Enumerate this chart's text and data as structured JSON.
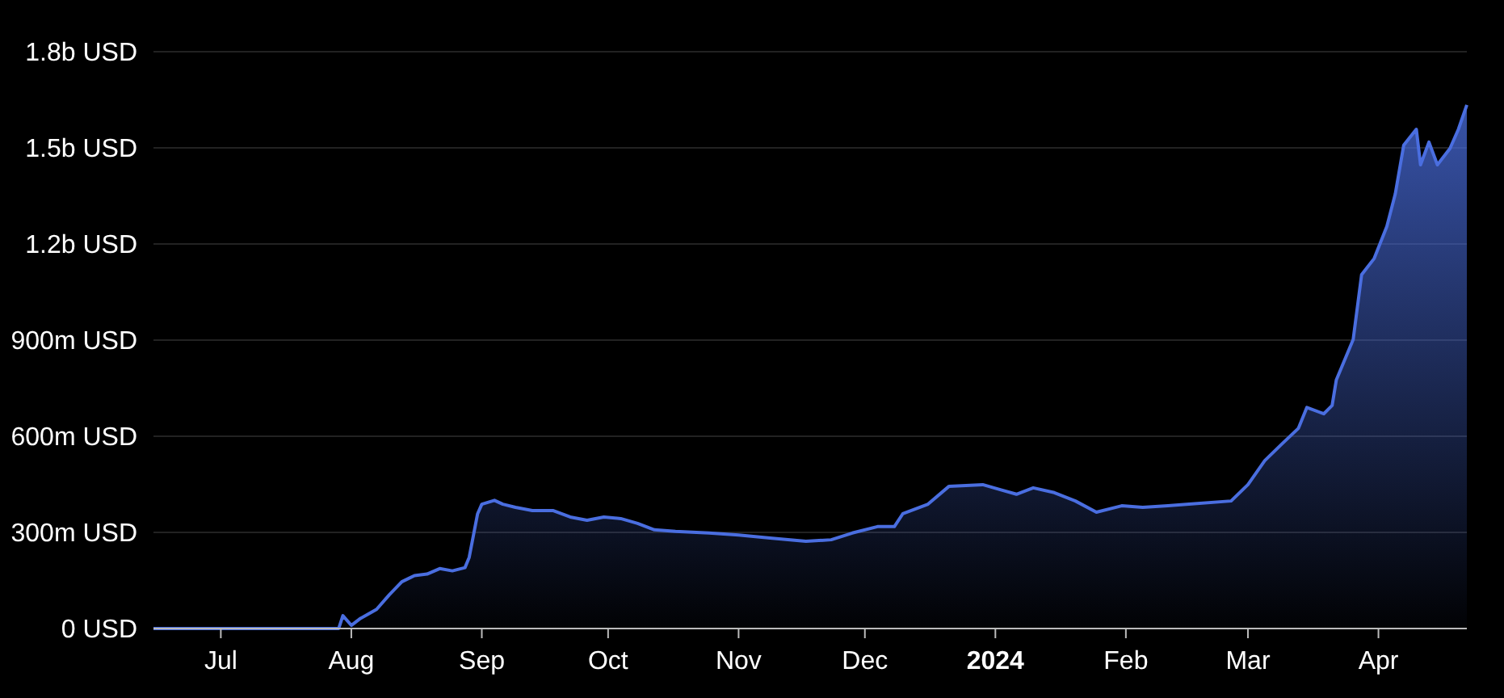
{
  "chart_data": {
    "type": "area",
    "x": [
      "2023-06-15",
      "2023-07-29",
      "2023-07-30",
      "2023-08-01",
      "2023-08-03",
      "2023-08-07",
      "2023-08-10",
      "2023-08-13",
      "2023-08-16",
      "2023-08-19",
      "2023-08-22",
      "2023-08-25",
      "2023-08-28",
      "2023-08-29",
      "2023-08-31",
      "2023-09-01",
      "2023-09-04",
      "2023-09-06",
      "2023-09-09",
      "2023-09-13",
      "2023-09-18",
      "2023-09-22",
      "2023-09-26",
      "2023-09-30",
      "2023-10-04",
      "2023-10-08",
      "2023-10-12",
      "2023-10-17",
      "2023-10-25",
      "2023-11-01",
      "2023-11-09",
      "2023-11-17",
      "2023-11-23",
      "2023-11-28",
      "2023-12-04",
      "2023-12-08",
      "2023-12-10",
      "2023-12-16",
      "2023-12-21",
      "2023-12-29",
      "2024-01-02",
      "2024-01-06",
      "2024-01-10",
      "2024-01-15",
      "2024-01-20",
      "2024-01-25",
      "2024-01-31",
      "2024-02-05",
      "2024-02-11",
      "2024-02-16",
      "2024-02-26",
      "2024-03-01",
      "2024-03-05",
      "2024-03-09",
      "2024-03-13",
      "2024-03-15",
      "2024-03-19",
      "2024-03-21",
      "2024-03-22",
      "2024-03-26",
      "2024-03-28",
      "2024-03-31",
      "2024-04-03",
      "2024-04-05",
      "2024-04-07",
      "2024-04-10",
      "2024-04-11",
      "2024-04-13",
      "2024-04-15",
      "2024-04-18",
      "2024-04-20",
      "2024-04-22"
    ],
    "series": [
      {
        "color": "#4a6ee0",
        "values": [
          0,
          0,
          40000000,
          10000000,
          30000000,
          60000000,
          105000000,
          146000000,
          165000000,
          170000000,
          187000000,
          180000000,
          190000000,
          222000000,
          358000000,
          388000000,
          400000000,
          388000000,
          378000000,
          368000000,
          368000000,
          348000000,
          338000000,
          348000000,
          343000000,
          328000000,
          308000000,
          303000000,
          298000000,
          292000000,
          282000000,
          272000000,
          277000000,
          298000000,
          318000000,
          318000000,
          358000000,
          388000000,
          444000000,
          449000000,
          434000000,
          419000000,
          439000000,
          424000000,
          398000000,
          363000000,
          383000000,
          378000000,
          383000000,
          388000000,
          398000000,
          449000000,
          524000000,
          575000000,
          625000000,
          690000000,
          670000000,
          696000000,
          776000000,
          902000000,
          1104000000,
          1155000000,
          1255000000,
          1356000000,
          1508000000,
          1558000000,
          1447000000,
          1518000000,
          1447000000,
          1498000000,
          1558000000,
          1634000000
        ]
      }
    ],
    "xlim": [
      "2023-06-15",
      "2024-04-22"
    ],
    "xticks": [
      {
        "value": "2023-07-01",
        "label": "Jul"
      },
      {
        "value": "2023-08-01",
        "label": "Aug"
      },
      {
        "value": "2023-09-01",
        "label": "Sep"
      },
      {
        "value": "2023-10-01",
        "label": "Oct"
      },
      {
        "value": "2023-11-01",
        "label": "Nov"
      },
      {
        "value": "2023-12-01",
        "label": "Dec"
      },
      {
        "value": "2024-01-01",
        "label": "2024"
      },
      {
        "value": "2024-02-01",
        "label": "Feb"
      },
      {
        "value": "2024-03-01",
        "label": "Mar"
      },
      {
        "value": "2024-04-01",
        "label": "Apr"
      }
    ],
    "ylim": [
      0,
      1800000000
    ],
    "yticks": [
      {
        "value": 0,
        "label": "0 USD"
      },
      {
        "value": 300000000,
        "label": "300m USD"
      },
      {
        "value": 600000000,
        "label": "600m USD"
      },
      {
        "value": 900000000,
        "label": "900m USD"
      },
      {
        "value": 1200000000,
        "label": "1.2b USD"
      },
      {
        "value": 1500000000,
        "label": "1.5b USD"
      },
      {
        "value": 1800000000,
        "label": "1.8b USD"
      }
    ],
    "grid": "y"
  }
}
